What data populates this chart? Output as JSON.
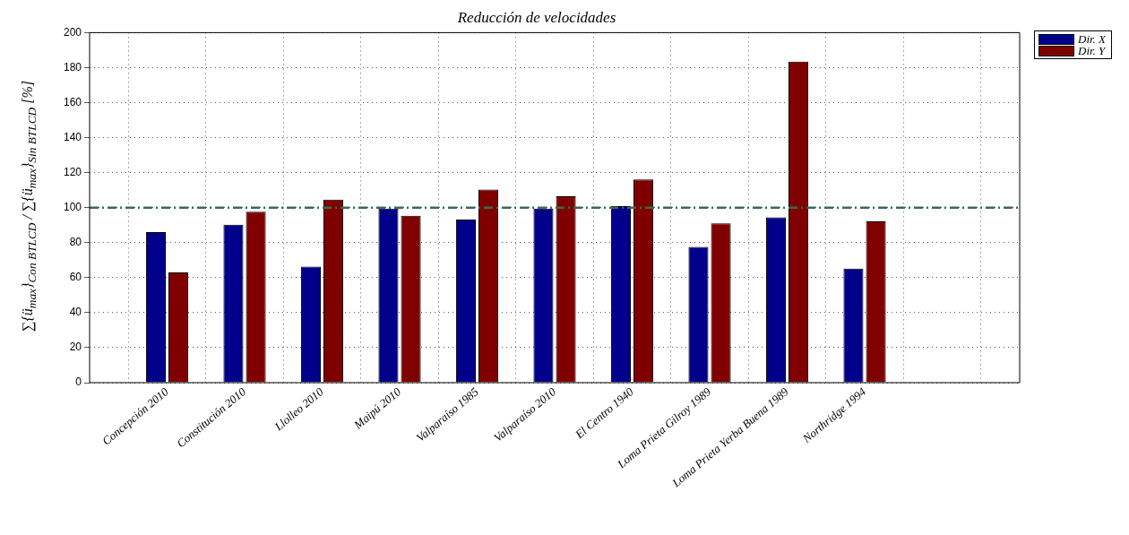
{
  "chart_data": {
    "type": "bar",
    "title": "Reducción de velocidades",
    "ylabel": "∑{ü$_{max}$}$_{Con BTLCD}$ / ∑{ü$_{max}$}$_{Sin BTLCD}$ [%]",
    "categories": [
      "Concepción 2010",
      "Constitución 2010",
      "Llolleo 2010",
      "Maipú 2010",
      "Valparaíso 1985",
      "Valparaíso 2010",
      "El Centro 1940",
      "Loma Prieta Gilroy 1989",
      "Loma Prieta Yerba Buena 1989",
      "Northridge 1994",
      null
    ],
    "series": [
      {
        "name": "Dir. X",
        "color": "#00008b",
        "values": [
          86,
          90.3,
          66.3,
          99.5,
          93.2,
          99.5,
          100.9,
          77.6,
          94.5,
          65.1,
          null
        ]
      },
      {
        "name": "Dir. Y",
        "color": "#800000",
        "values": [
          63,
          97.7,
          104.6,
          95.4,
          110.3,
          106.5,
          116.1,
          91,
          183.5,
          92.2,
          null
        ]
      }
    ],
    "ylim": [
      0,
      200
    ],
    "yticks": [
      0,
      20,
      40,
      60,
      80,
      100,
      120,
      140,
      160,
      180,
      200
    ],
    "grid": true,
    "legend": "top right",
    "ref_lines": [
      {
        "axis": "y",
        "value": 100,
        "color": "#3a6b50",
        "line_style": "dashdot"
      }
    ]
  }
}
